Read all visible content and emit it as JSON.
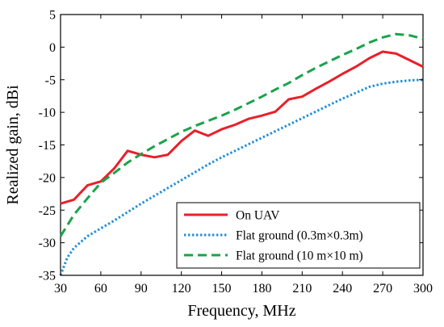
{
  "chart_data": {
    "type": "line",
    "xlabel": "Frequency, MHz",
    "ylabel": "Realized gain, dBi",
    "xlim": [
      30,
      300
    ],
    "ylim": [
      -35,
      5
    ],
    "xticks": [
      30,
      60,
      90,
      120,
      150,
      180,
      210,
      240,
      270,
      300
    ],
    "yticks": [
      -35,
      -30,
      -25,
      -20,
      -15,
      -10,
      -5,
      0,
      5
    ],
    "grid": false,
    "legend_position": "bottom-right",
    "series": [
      {
        "name": "On UAV",
        "color": "#e8202a",
        "style": "solid",
        "x": [
          30,
          40,
          50,
          60,
          70,
          80,
          90,
          100,
          110,
          120,
          130,
          140,
          150,
          160,
          170,
          180,
          190,
          200,
          210,
          220,
          230,
          240,
          250,
          260,
          270,
          280,
          290,
          300
        ],
        "y": [
          -24.0,
          -23.4,
          -21.2,
          -20.6,
          -18.6,
          -15.9,
          -16.5,
          -16.9,
          -16.5,
          -14.4,
          -12.8,
          -13.6,
          -12.6,
          -11.9,
          -11.0,
          -10.5,
          -9.9,
          -8.0,
          -7.6,
          -6.4,
          -5.3,
          -4.1,
          -3.0,
          -1.7,
          -0.7,
          -1.0,
          -2.0,
          -3.0
        ]
      },
      {
        "name": "Flat ground (0.3m×0.3m)",
        "color": "#1f8fd6",
        "style": "dotted",
        "x": [
          30,
          35,
          40,
          50,
          60,
          70,
          80,
          90,
          100,
          110,
          120,
          130,
          140,
          150,
          160,
          170,
          180,
          190,
          200,
          210,
          220,
          230,
          240,
          250,
          260,
          270,
          280,
          290,
          300
        ],
        "y": [
          -35.0,
          -32.3,
          -30.8,
          -29.0,
          -27.8,
          -26.6,
          -25.3,
          -24.0,
          -22.8,
          -21.6,
          -20.4,
          -19.2,
          -18.0,
          -16.9,
          -15.9,
          -14.9,
          -13.9,
          -12.9,
          -11.9,
          -10.9,
          -9.9,
          -8.9,
          -7.9,
          -7.0,
          -6.1,
          -5.6,
          -5.3,
          -5.1,
          -5.0
        ]
      },
      {
        "name": "Flat ground (10 m×10 m)",
        "color": "#1aa34a",
        "style": "dashed",
        "x": [
          30,
          40,
          50,
          60,
          70,
          80,
          90,
          100,
          110,
          120,
          130,
          140,
          150,
          160,
          170,
          180,
          190,
          200,
          210,
          220,
          230,
          240,
          250,
          260,
          270,
          280,
          290,
          300
        ],
        "y": [
          -29.0,
          -25.7,
          -23.2,
          -20.8,
          -19.3,
          -17.7,
          -16.4,
          -15.2,
          -14.1,
          -13.0,
          -12.1,
          -11.3,
          -10.5,
          -9.6,
          -8.6,
          -7.6,
          -6.5,
          -5.5,
          -4.3,
          -3.2,
          -2.2,
          -1.2,
          -0.3,
          0.7,
          1.5,
          2.0,
          1.8,
          1.3
        ]
      }
    ]
  }
}
